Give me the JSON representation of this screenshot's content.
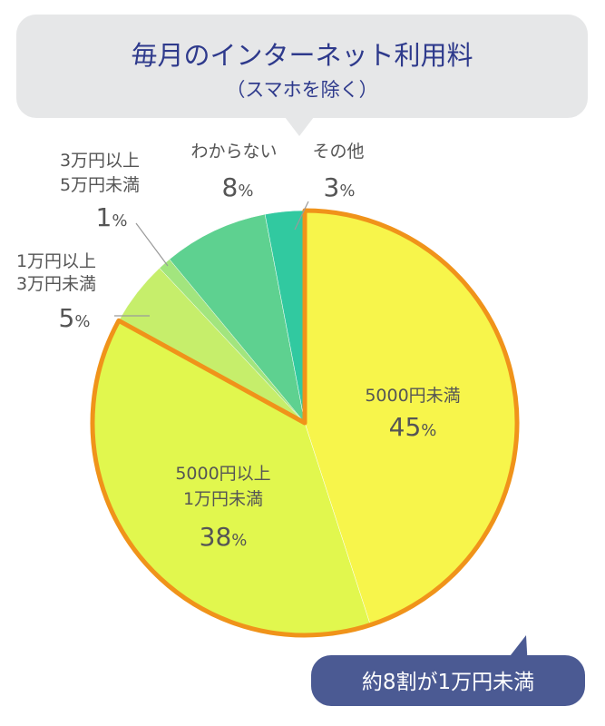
{
  "header": {
    "title": "毎月のインターネット利用料",
    "subtitle": "（スマホを除く）"
  },
  "callout": {
    "text": "約8割が1万円未満"
  },
  "colors": {
    "bubble_bg": "#e6e7e8",
    "title_color": "#2e3a8c",
    "callout_bg": "#4b5a93",
    "callout_text": "#ffffff",
    "highlight_stroke": "#f0931a",
    "label_text": "#555555"
  },
  "chart_data": {
    "type": "pie",
    "title": "毎月のインターネット利用料",
    "subtitle": "（スマホを除く）",
    "slices": [
      {
        "label": "5000円未満",
        "value": 45,
        "color": "#f7f54b",
        "highlighted": true
      },
      {
        "label": "5000円以上\n1万円未満",
        "value": 38,
        "color": "#e1f74e",
        "highlighted": true
      },
      {
        "label": "1万円以上\n3万円未満",
        "value": 5,
        "color": "#c6ee6b",
        "highlighted": false
      },
      {
        "label": "3万円以上\n5万円未満",
        "value": 1,
        "color": "#a2e57e",
        "highlighted": false
      },
      {
        "label": "わからない",
        "value": 8,
        "color": "#5ed190",
        "highlighted": false
      },
      {
        "label": "その他",
        "value": 3,
        "color": "#31c9a0",
        "highlighted": false
      }
    ]
  }
}
